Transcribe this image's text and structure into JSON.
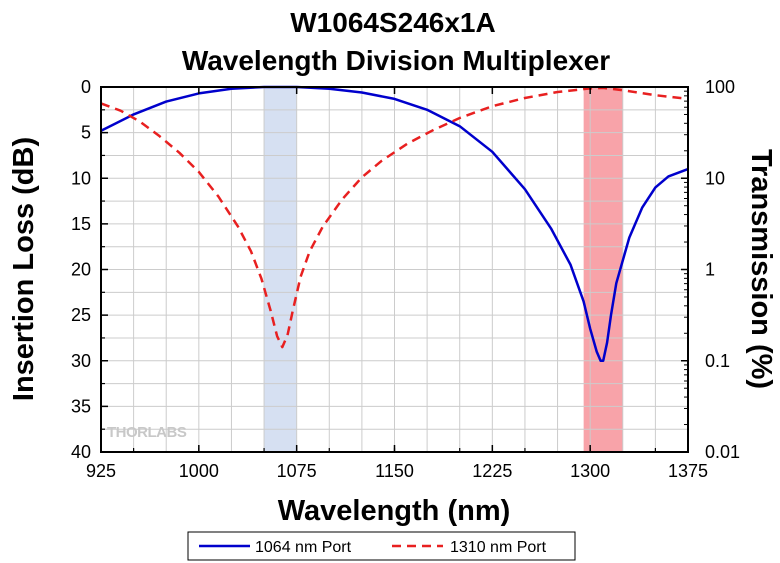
{
  "chart_data": {
    "type": "line",
    "title_line1": "W1064S246x1A",
    "title_line2": "Wavelength Division Multiplexer",
    "xlabel": "Wavelength (nm)",
    "ylabel": "Insertion Loss (dB)",
    "y2label": "Transmission (%)",
    "xlim": [
      925,
      1375
    ],
    "ylim": [
      0,
      40
    ],
    "y_inverted": true,
    "y2_scale": "log",
    "y2lim": [
      0.01,
      100
    ],
    "x_ticks": [
      "925",
      "1000",
      "1075",
      "1150",
      "1225",
      "1300",
      "1375"
    ],
    "y_ticks": [
      "0",
      "5",
      "10",
      "15",
      "20",
      "25",
      "30",
      "35",
      "40"
    ],
    "y2_ticks": [
      "100",
      "10",
      "1",
      "0.1",
      "0.01"
    ],
    "grid": true,
    "legend_position": "bottom",
    "bands": [
      {
        "from": 1050,
        "to": 1075,
        "color": "#d6e0f2"
      },
      {
        "from": 1295,
        "to": 1325,
        "color": "#f8a3a9"
      }
    ],
    "series": [
      {
        "name": "1064 nm Port",
        "color": "#0000cc",
        "style": "solid",
        "x": [
          925,
          950,
          975,
          1000,
          1025,
          1050,
          1064,
          1075,
          1100,
          1125,
          1150,
          1175,
          1200,
          1225,
          1250,
          1270,
          1285,
          1295,
          1300,
          1305,
          1308,
          1310,
          1313,
          1316,
          1320,
          1330,
          1340,
          1350,
          1360,
          1375
        ],
        "values": [
          4.8,
          3.0,
          1.6,
          0.7,
          0.2,
          0.0,
          0.0,
          0.0,
          0.2,
          0.6,
          1.3,
          2.5,
          4.3,
          7.1,
          11.2,
          15.5,
          19.5,
          23.5,
          26.5,
          29.0,
          30.0,
          30.0,
          28.0,
          25.0,
          21.5,
          16.5,
          13.2,
          11.0,
          9.8,
          9.0
        ]
      },
      {
        "name": "1310 nm Port",
        "color": "#e82020",
        "style": "dashed",
        "x": [
          925,
          940,
          955,
          970,
          985,
          1000,
          1015,
          1030,
          1040,
          1048,
          1055,
          1060,
          1064,
          1068,
          1072,
          1078,
          1085,
          1095,
          1110,
          1125,
          1140,
          1160,
          1180,
          1200,
          1225,
          1250,
          1275,
          1300,
          1310,
          1325,
          1350,
          1375
        ],
        "values": [
          1.8,
          2.6,
          3.8,
          5.4,
          7.2,
          9.3,
          12.0,
          15.3,
          18.0,
          21.0,
          24.5,
          27.3,
          28.5,
          27.2,
          24.5,
          20.8,
          18.0,
          15.3,
          12.3,
          9.9,
          8.1,
          6.2,
          4.7,
          3.4,
          2.1,
          1.2,
          0.55,
          0.15,
          0.1,
          0.35,
          0.9,
          1.3
        ]
      }
    ],
    "watermark": "THORLABS"
  }
}
